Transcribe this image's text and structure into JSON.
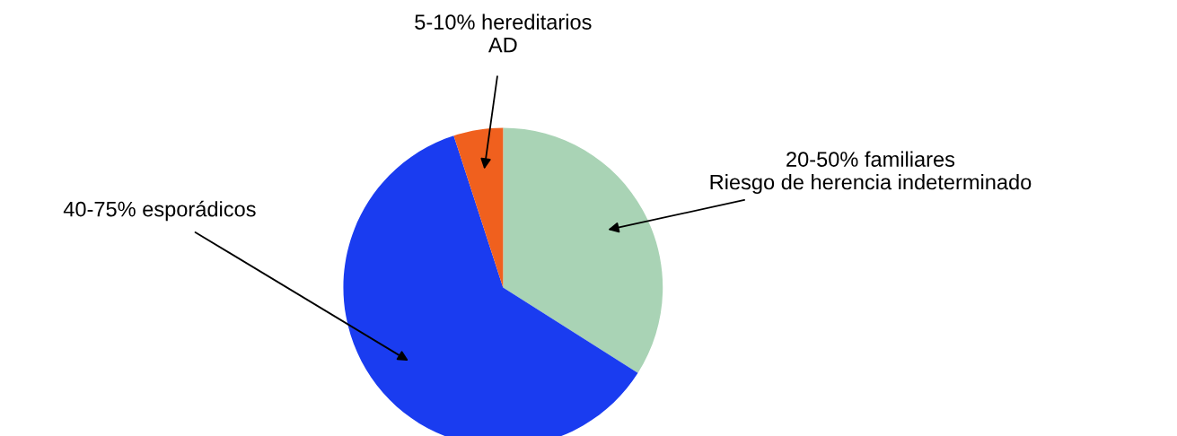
{
  "chart_data": {
    "type": "pie",
    "categories": [
      "20-50% familiares\nRiesgo de herencia indeterminado",
      "40-75% esporádicos",
      "5-10% hereditarios\nAD"
    ],
    "values": [
      34,
      61,
      5
    ],
    "colors": [
      "#a9d3b5",
      "#1a3cf0",
      "#f0601e"
    ],
    "legend": false
  }
}
